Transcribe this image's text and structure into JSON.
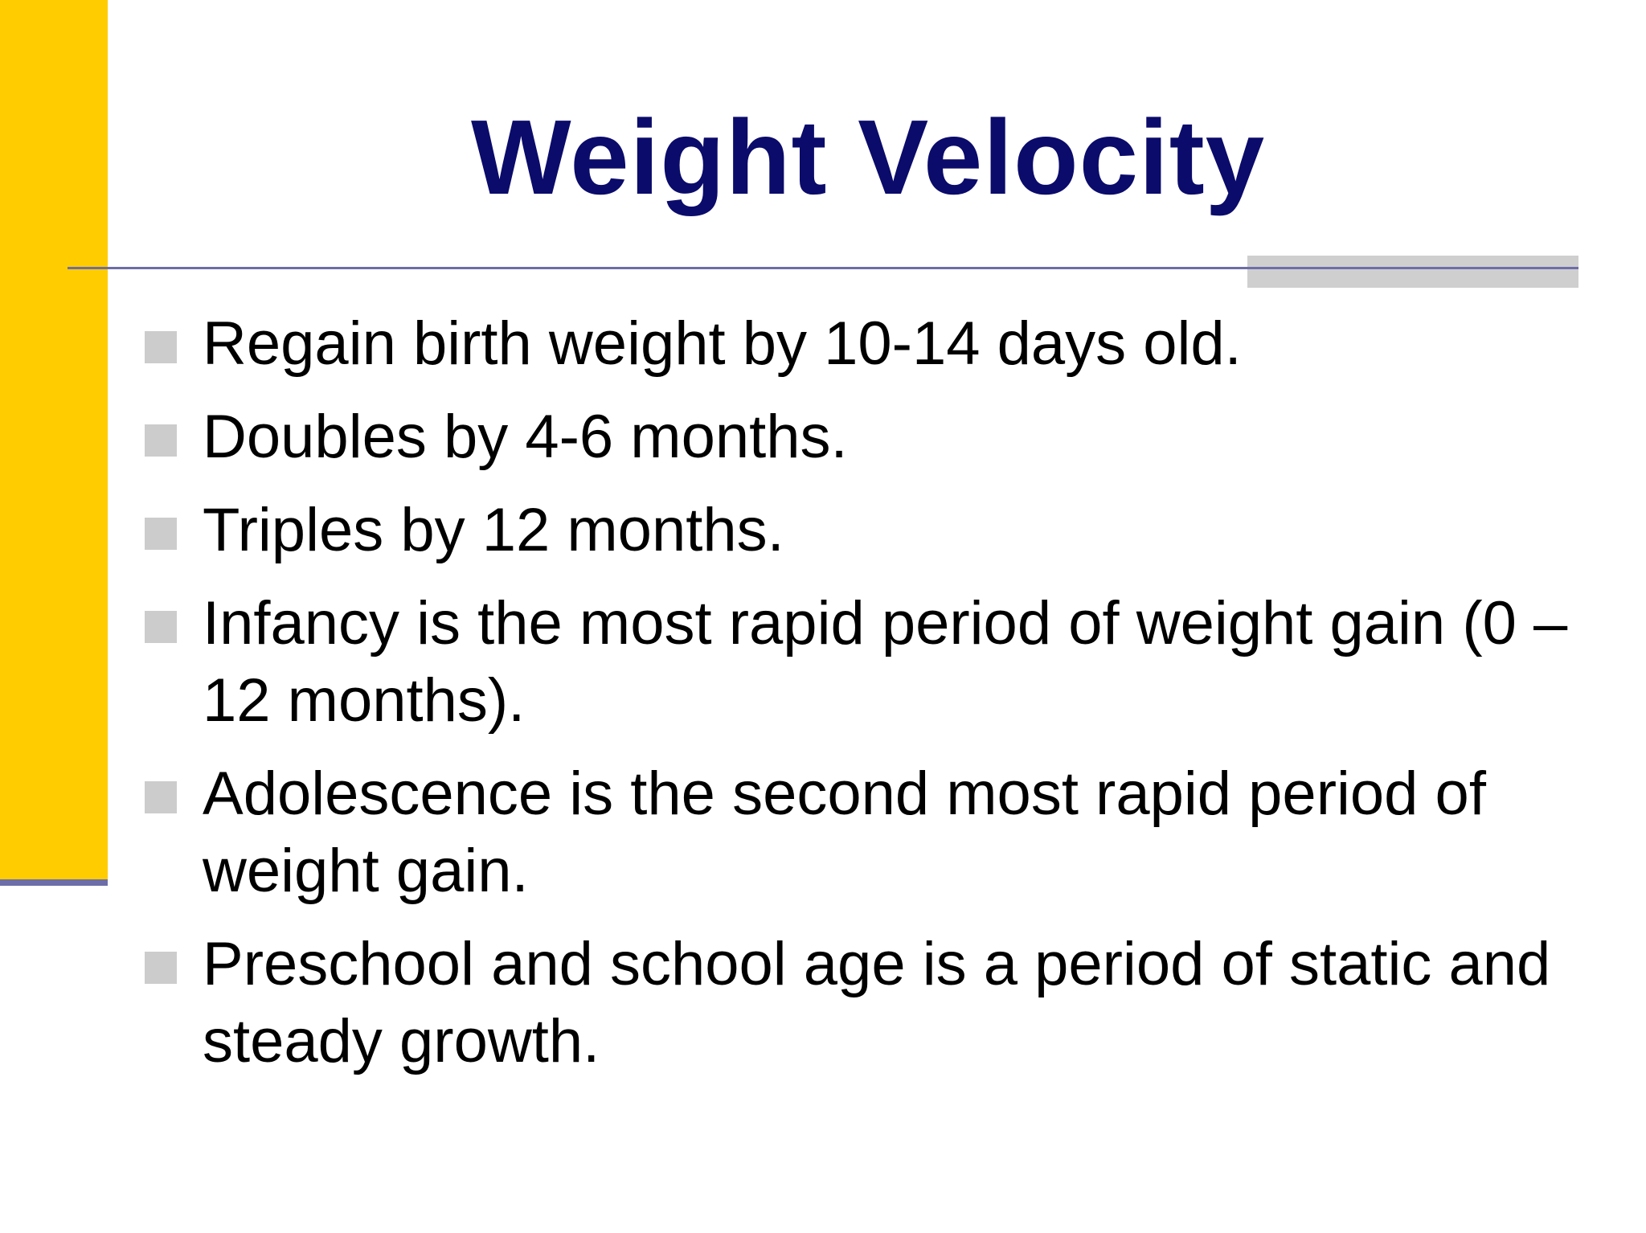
{
  "slide": {
    "title": "Weight Velocity",
    "bullets": [
      "Regain birth weight by 10-14 days old.",
      "Doubles by 4-6 months.",
      "Triples by 12 months.",
      "Infancy is the most rapid period of weight gain (0 – 12 months).",
      "Adolescence is the second most rapid period of weight gain.",
      "Preschool and school age is a period of static and steady growth."
    ],
    "colors": {
      "title": "#0b0b6b",
      "left_bar": "#ffcc00",
      "rule": "#6d6da8",
      "bullet_marker": "#cccccc"
    }
  }
}
